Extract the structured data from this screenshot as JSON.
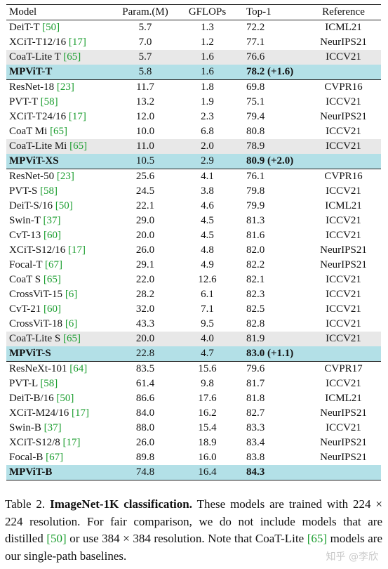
{
  "table": {
    "headers": [
      "Model",
      "Param.(M)",
      "GFLOPs",
      "Top-1",
      "Reference"
    ],
    "groups": [
      {
        "rows": [
          {
            "model": "DeiT-T",
            "cite": "[50]",
            "param": "5.7",
            "gflops": "1.3",
            "top1": "72.2",
            "ref": "ICML21",
            "style": "plain"
          },
          {
            "model": "XCiT-T12/16",
            "cite": "[17]",
            "param": "7.0",
            "gflops": "1.2",
            "top1": "77.1",
            "ref": "NeurIPS21",
            "style": "plain"
          },
          {
            "model": "CoaT-Lite T",
            "cite": "[65]",
            "param": "5.7",
            "gflops": "1.6",
            "top1": "76.6",
            "ref": "ICCV21",
            "style": "gray"
          },
          {
            "model": "MPViT-T",
            "cite": "",
            "param": "5.8",
            "gflops": "1.6",
            "top1": "78.2 (+1.6)",
            "ref": "",
            "style": "ours"
          }
        ]
      },
      {
        "rows": [
          {
            "model": "ResNet-18",
            "cite": "[23]",
            "param": "11.7",
            "gflops": "1.8",
            "top1": "69.8",
            "ref": "CVPR16",
            "style": "plain"
          },
          {
            "model": "PVT-T",
            "cite": "[58]",
            "param": "13.2",
            "gflops": "1.9",
            "top1": "75.1",
            "ref": "ICCV21",
            "style": "plain"
          },
          {
            "model": "XCiT-T24/16",
            "cite": "[17]",
            "param": "12.0",
            "gflops": "2.3",
            "top1": "79.4",
            "ref": "NeurIPS21",
            "style": "plain"
          },
          {
            "model": "CoaT Mi",
            "cite": "[65]",
            "param": "10.0",
            "gflops": "6.8",
            "top1": "80.8",
            "ref": "ICCV21",
            "style": "plain"
          },
          {
            "model": "CoaT-Lite Mi",
            "cite": "[65]",
            "param": "11.0",
            "gflops": "2.0",
            "top1": "78.9",
            "ref": "ICCV21",
            "style": "gray"
          },
          {
            "model": "MPViT-XS",
            "cite": "",
            "param": "10.5",
            "gflops": "2.9",
            "top1": "80.9 (+2.0)",
            "ref": "",
            "style": "ours"
          }
        ]
      },
      {
        "rows": [
          {
            "model": "ResNet-50",
            "cite": "[23]",
            "param": "25.6",
            "gflops": "4.1",
            "top1": "76.1",
            "ref": "CVPR16",
            "style": "plain"
          },
          {
            "model": "PVT-S",
            "cite": "[58]",
            "param": "24.5",
            "gflops": "3.8",
            "top1": "79.8",
            "ref": "ICCV21",
            "style": "plain"
          },
          {
            "model": "DeiT-S/16",
            "cite": "[50]",
            "param": "22.1",
            "gflops": "4.6",
            "top1": "79.9",
            "ref": "ICML21",
            "style": "plain"
          },
          {
            "model": "Swin-T",
            "cite": "[37]",
            "param": "29.0",
            "gflops": "4.5",
            "top1": "81.3",
            "ref": "ICCV21",
            "style": "plain"
          },
          {
            "model": "CvT-13",
            "cite": "[60]",
            "param": "20.0",
            "gflops": "4.5",
            "top1": "81.6",
            "ref": "ICCV21",
            "style": "plain"
          },
          {
            "model": "XCiT-S12/16",
            "cite": "[17]",
            "param": "26.0",
            "gflops": "4.8",
            "top1": "82.0",
            "ref": "NeurIPS21",
            "style": "plain"
          },
          {
            "model": "Focal-T",
            "cite": "[67]",
            "param": "29.1",
            "gflops": "4.9",
            "top1": "82.2",
            "ref": "NeurIPS21",
            "style": "plain"
          },
          {
            "model": "CoaT S",
            "cite": "[65]",
            "param": "22.0",
            "gflops": "12.6",
            "top1": "82.1",
            "ref": "ICCV21",
            "style": "plain"
          },
          {
            "model": "CrossViT-15",
            "cite": "[6]",
            "param": "28.2",
            "gflops": "6.1",
            "top1": "82.3",
            "ref": "ICCV21",
            "style": "plain"
          },
          {
            "model": "CvT-21",
            "cite": "[60]",
            "param": "32.0",
            "gflops": "7.1",
            "top1": "82.5",
            "ref": "ICCV21",
            "style": "plain"
          },
          {
            "model": "CrossViT-18",
            "cite": "[6]",
            "param": "43.3",
            "gflops": "9.5",
            "top1": "82.8",
            "ref": "ICCV21",
            "style": "plain"
          },
          {
            "model": "CoaT-Lite S",
            "cite": "[65]",
            "param": "20.0",
            "gflops": "4.0",
            "top1": "81.9",
            "ref": "ICCV21",
            "style": "gray"
          },
          {
            "model": "MPViT-S",
            "cite": "",
            "param": "22.8",
            "gflops": "4.7",
            "top1": "83.0 (+1.1)",
            "ref": "",
            "style": "ours"
          }
        ]
      },
      {
        "rows": [
          {
            "model": "ResNeXt-101",
            "cite": "[64]",
            "param": "83.5",
            "gflops": "15.6",
            "top1": "79.6",
            "ref": "CVPR17",
            "style": "plain"
          },
          {
            "model": "PVT-L",
            "cite": "[58]",
            "param": "61.4",
            "gflops": "9.8",
            "top1": "81.7",
            "ref": "ICCV21",
            "style": "plain"
          },
          {
            "model": "DeiT-B/16",
            "cite": "[50]",
            "param": "86.6",
            "gflops": "17.6",
            "top1": "81.8",
            "ref": "ICML21",
            "style": "plain"
          },
          {
            "model": "XCiT-M24/16",
            "cite": "[17]",
            "param": "84.0",
            "gflops": "16.2",
            "top1": "82.7",
            "ref": "NeurIPS21",
            "style": "plain"
          },
          {
            "model": "Swin-B",
            "cite": "[37]",
            "param": "88.0",
            "gflops": "15.4",
            "top1": "83.3",
            "ref": "ICCV21",
            "style": "plain"
          },
          {
            "model": "XCiT-S12/8",
            "cite": "[17]",
            "param": "26.0",
            "gflops": "18.9",
            "top1": "83.4",
            "ref": "NeurIPS21",
            "style": "plain"
          },
          {
            "model": "Focal-B",
            "cite": "[67]",
            "param": "89.8",
            "gflops": "16.0",
            "top1": "83.8",
            "ref": "NeurIPS21",
            "style": "plain"
          },
          {
            "model": "MPViT-B",
            "cite": "",
            "param": "74.8",
            "gflops": "16.4",
            "top1": "84.3",
            "ref": "",
            "style": "ours"
          }
        ]
      }
    ]
  },
  "caption": {
    "label": "Table 2.",
    "title": "ImageNet-1K classification.",
    "part1": "These models are trained with 224 × 224 resolution. For fair comparison, we do not include models that are distilled ",
    "cite1": "[50]",
    "part2": " or use 384 × 384 resolution. Note that CoaT-Lite ",
    "cite2": "[65]",
    "part3": " models are our single-path baselines."
  },
  "watermark": "知乎 @李欣",
  "colors": {
    "cite": "#1a9d2e",
    "gray_row": "#e8e8e8",
    "highlight_row": "#b3e0e7"
  }
}
